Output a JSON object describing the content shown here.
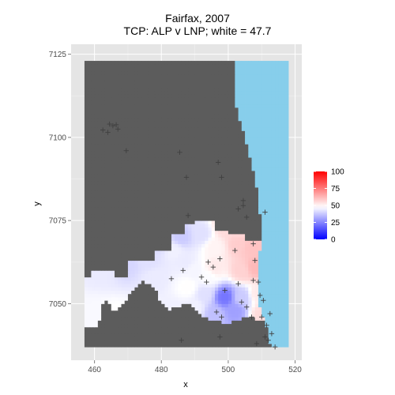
{
  "chart_data": {
    "type": "heatmap",
    "title": "Fairfax, 2007",
    "subtitle": "TCP: ALP v LNP; white = 47.7",
    "xlabel": "x",
    "ylabel": "y",
    "x_ticks": [
      460,
      480,
      500,
      520
    ],
    "y_ticks": [
      7050,
      7075,
      7100,
      7125
    ],
    "xlim": [
      453,
      522
    ],
    "ylim": [
      7033,
      7128
    ],
    "grid": true,
    "legend": {
      "placement": "right",
      "ticks": [
        0,
        25,
        50,
        75,
        100
      ],
      "colors": {
        "low": "#0000ff",
        "mid": "#ffffff",
        "high": "#ff0000"
      },
      "midpoint": 47.7
    },
    "colors": {
      "panel": "#e5e5e5",
      "gridline": "#ffffff",
      "land_nodata": "#5c5c5c",
      "sea": "#87ceeb",
      "marker": "#404040"
    },
    "booths": [
      [
        464.5,
        7104
      ],
      [
        465.5,
        7103.5
      ],
      [
        466.5,
        7103.8
      ],
      [
        467,
        7102.5
      ],
      [
        464,
        7101.5
      ],
      [
        462.5,
        7102.2
      ],
      [
        485.5,
        7095.5
      ],
      [
        487.5,
        7088
      ],
      [
        497,
        7092.5
      ],
      [
        498,
        7088
      ],
      [
        504.5,
        7081
      ],
      [
        504.5,
        7079.5
      ],
      [
        503,
        7078.5
      ],
      [
        511,
        7077.5
      ],
      [
        505.5,
        7076
      ],
      [
        488,
        7076.5
      ],
      [
        507.5,
        7068
      ],
      [
        502,
        7066
      ],
      [
        497.5,
        7063.5
      ],
      [
        508,
        7063
      ],
      [
        494,
        7062.5
      ],
      [
        495.5,
        7061
      ],
      [
        492,
        7058
      ],
      [
        486.5,
        7060
      ],
      [
        483,
        7057.5
      ],
      [
        493.5,
        7056.5
      ],
      [
        503,
        7056
      ],
      [
        507.5,
        7057
      ],
      [
        509,
        7056.5
      ],
      [
        499,
        7054
      ],
      [
        509.5,
        7052.5
      ],
      [
        510.5,
        7051
      ],
      [
        504,
        7050.5
      ],
      [
        505.5,
        7049
      ],
      [
        496.5,
        7047.5
      ],
      [
        512.5,
        7047
      ],
      [
        510,
        7046
      ],
      [
        498,
        7046
      ],
      [
        507,
        7046
      ],
      [
        511.5,
        7043.5
      ],
      [
        513,
        7041
      ],
      [
        512,
        7039
      ],
      [
        511,
        7040
      ],
      [
        486,
        7039
      ],
      [
        497.5,
        7040
      ],
      [
        508.5,
        7038
      ],
      [
        514,
        7037
      ],
      [
        469.5,
        7096
      ]
    ],
    "swing_samples": [
      [
        460,
        7047,
        46.5
      ],
      [
        466,
        7046,
        48
      ],
      [
        462,
        7060,
        44
      ],
      [
        470,
        7062,
        40
      ],
      [
        476,
        7063,
        42
      ],
      [
        478,
        7058,
        44
      ],
      [
        484,
        7066,
        45
      ],
      [
        486,
        7070,
        38
      ],
      [
        492,
        7071,
        42
      ],
      [
        496,
        7067,
        50
      ],
      [
        499,
        7073,
        55
      ],
      [
        503,
        7068,
        58
      ],
      [
        507,
        7067,
        60
      ],
      [
        508,
        7061,
        62
      ],
      [
        504,
        7060,
        57
      ],
      [
        496,
        7061,
        52
      ],
      [
        494,
        7058,
        47
      ],
      [
        490,
        7060,
        46
      ],
      [
        488,
        7055,
        48
      ],
      [
        493,
        7053,
        42
      ],
      [
        499,
        7052,
        22
      ],
      [
        502,
        7048,
        30
      ],
      [
        504,
        7052,
        38
      ],
      [
        509,
        7053,
        52
      ],
      [
        510,
        7047,
        55
      ],
      [
        496,
        7047,
        36
      ],
      [
        490,
        7049,
        45
      ],
      [
        483,
        7048,
        45
      ],
      [
        487,
        7063,
        44
      ],
      [
        480,
        7069,
        40
      ],
      [
        503,
        7072,
        56
      ],
      [
        475,
        7047,
        47
      ]
    ]
  }
}
